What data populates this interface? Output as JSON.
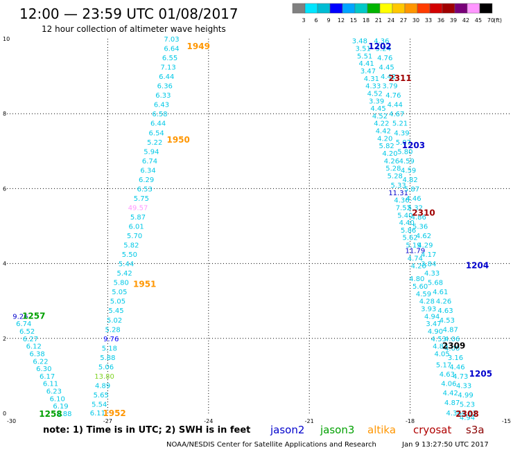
{
  "header": {
    "title": "12:00 — 23:59 UTC 01/08/2017",
    "subtitle": "12 hour collection of altimeter wave heights"
  },
  "color_scale": {
    "labels": [
      "3",
      "6",
      "9",
      "12",
      "15",
      "18",
      "21",
      "24",
      "27",
      "30",
      "33",
      "36",
      "39",
      "42",
      "45",
      "70"
    ],
    "unit": "(ft)",
    "colors": [
      "#808080",
      "#00e5ff",
      "#00bcd4",
      "#0000ff",
      "#00a5ff",
      "#00c8c8",
      "#00b400",
      "#ffff00",
      "#ffc800",
      "#ff9600",
      "#ff3c00",
      "#d20000",
      "#a00000",
      "#780078",
      "#ff96ff",
      "#000000"
    ]
  },
  "footer": {
    "note": "note:  1) Time is in UTC;  2) SWH is in feet",
    "credit": "NOAA/NESDIS Center for Satellite Applications and Research",
    "timestamp": "Jan  9 13:27:50 UTC 2017"
  },
  "legend": [
    {
      "name": "jason2",
      "color": "#0000cc"
    },
    {
      "name": "jason3",
      "color": "#00a000"
    },
    {
      "name": "altika",
      "color": "#ff9600"
    },
    {
      "name": "cryosat",
      "color": "#b00000"
    },
    {
      "name": "s3a",
      "color": "#8b0000"
    }
  ],
  "chart_data": {
    "type": "scatter",
    "xlim": [
      -30,
      -15
    ],
    "ylim": [
      0,
      10
    ],
    "x_ticks": [
      "-30",
      "-27",
      "-24",
      "-21",
      "-18",
      "-15"
    ],
    "y_ticks": [
      "0",
      "2",
      "4",
      "6",
      "8",
      "10"
    ],
    "grid": true,
    "pass_labels": [
      {
        "text": "1949",
        "x": -24.3,
        "y": 9.8,
        "color": "#ff9600"
      },
      {
        "text": "1950",
        "x": -24.9,
        "y": 7.3,
        "color": "#ff9600"
      },
      {
        "text": "1951",
        "x": -25.9,
        "y": 3.45,
        "color": "#ff9600"
      },
      {
        "text": "1952",
        "x": -26.8,
        "y": 0.0,
        "color": "#ff9600"
      },
      {
        "text": "1257",
        "x": -29.2,
        "y": 2.6,
        "color": "#00a000"
      },
      {
        "text": "1258",
        "x": -28.7,
        "y": -0.02,
        "color": "#00a000"
      },
      {
        "text": "1202",
        "x": -18.9,
        "y": 9.8,
        "color": "#0000cc"
      },
      {
        "text": "1203",
        "x": -17.9,
        "y": 7.15,
        "color": "#0000cc"
      },
      {
        "text": "1204",
        "x": -16.0,
        "y": 3.95,
        "color": "#0000cc"
      },
      {
        "text": "1205",
        "x": -15.9,
        "y": 1.05,
        "color": "#0000cc"
      },
      {
        "text": "2311",
        "x": -18.3,
        "y": 8.95,
        "color": "#a00000"
      },
      {
        "text": "2310",
        "x": -17.6,
        "y": 5.35,
        "color": "#a00000"
      },
      {
        "text": "2309",
        "x": -16.7,
        "y": 1.8,
        "color": "#000000"
      },
      {
        "text": "2308",
        "x": -16.3,
        "y": -0.02,
        "color": "#a00000"
      }
    ],
    "series": [
      {
        "name": "altika",
        "color": "#00c8e6",
        "points": [
          {
            "x": -25.1,
            "y": 10.0,
            "v": "7.03"
          },
          {
            "x": -25.1,
            "y": 9.75,
            "v": "6.64"
          },
          {
            "x": -25.15,
            "y": 9.5,
            "v": "6.55"
          },
          {
            "x": -25.2,
            "y": 9.25,
            "v": "7.13"
          },
          {
            "x": -25.25,
            "y": 9.0,
            "v": "6.44"
          },
          {
            "x": -25.3,
            "y": 8.75,
            "v": "6.36"
          },
          {
            "x": -25.35,
            "y": 8.5,
            "v": "6.33"
          },
          {
            "x": -25.4,
            "y": 8.25,
            "v": "6.43"
          },
          {
            "x": -25.45,
            "y": 8.0,
            "v": "6.58"
          },
          {
            "x": -25.5,
            "y": 7.75,
            "v": "6.44"
          },
          {
            "x": -25.55,
            "y": 7.5,
            "v": "6.54"
          },
          {
            "x": -25.6,
            "y": 7.25,
            "v": "5.22"
          },
          {
            "x": -25.7,
            "y": 7.0,
            "v": "5.94"
          },
          {
            "x": -25.75,
            "y": 6.75,
            "v": "6.74"
          },
          {
            "x": -25.8,
            "y": 6.5,
            "v": "6.34"
          },
          {
            "x": -25.85,
            "y": 6.25,
            "v": "6.29"
          },
          {
            "x": -25.9,
            "y": 6.0,
            "v": "6.53"
          },
          {
            "x": -26.0,
            "y": 5.75,
            "v": "5.75"
          },
          {
            "x": -26.1,
            "y": 5.5,
            "v": "49.57",
            "color": "#ff96ff"
          },
          {
            "x": -26.1,
            "y": 5.25,
            "v": "5.87"
          },
          {
            "x": -26.15,
            "y": 5.0,
            "v": "6.01"
          },
          {
            "x": -26.2,
            "y": 4.75,
            "v": "5.70"
          },
          {
            "x": -26.3,
            "y": 4.5,
            "v": "5.82"
          },
          {
            "x": -26.35,
            "y": 4.25,
            "v": "5.50"
          },
          {
            "x": -26.45,
            "y": 4.0,
            "v": "5.44"
          },
          {
            "x": -26.5,
            "y": 3.75,
            "v": "5.42"
          },
          {
            "x": -26.6,
            "y": 3.5,
            "v": "5.80"
          },
          {
            "x": -26.65,
            "y": 3.25,
            "v": "5.05"
          },
          {
            "x": -26.7,
            "y": 3.0,
            "v": "5.05"
          },
          {
            "x": -26.75,
            "y": 2.75,
            "v": "5.45"
          },
          {
            "x": -26.8,
            "y": 2.5,
            "v": "5.02"
          },
          {
            "x": -26.85,
            "y": 2.25,
            "v": "5.28"
          },
          {
            "x": -26.9,
            "y": 2.0,
            "v": "9.76",
            "color": "#0000ff"
          },
          {
            "x": -26.95,
            "y": 1.75,
            "v": "5.18"
          },
          {
            "x": -27.0,
            "y": 1.5,
            "v": "5.88"
          },
          {
            "x": -27.05,
            "y": 1.25,
            "v": "5.06"
          },
          {
            "x": -27.1,
            "y": 1.0,
            "v": "13.80",
            "color": "#7ed321"
          },
          {
            "x": -27.15,
            "y": 0.75,
            "v": "4.89"
          },
          {
            "x": -27.2,
            "y": 0.5,
            "v": "5.65"
          },
          {
            "x": -27.25,
            "y": 0.25,
            "v": "5.54"
          },
          {
            "x": -27.3,
            "y": 0.02,
            "v": "6.11"
          }
        ]
      },
      {
        "name": "jason3",
        "color": "#00c8e6",
        "points": [
          {
            "x": -29.6,
            "y": 2.6,
            "v": "9.26",
            "color": "#0000cc"
          },
          {
            "x": -29.5,
            "y": 2.4,
            "v": "6.74"
          },
          {
            "x": -29.4,
            "y": 2.2,
            "v": "6.52"
          },
          {
            "x": -29.3,
            "y": 2.0,
            "v": "6.27"
          },
          {
            "x": -29.2,
            "y": 1.8,
            "v": "6.12"
          },
          {
            "x": -29.1,
            "y": 1.6,
            "v": "6.38"
          },
          {
            "x": -29.0,
            "y": 1.4,
            "v": "6.22"
          },
          {
            "x": -28.9,
            "y": 1.2,
            "v": "6.30"
          },
          {
            "x": -28.8,
            "y": 1.0,
            "v": "6.17"
          },
          {
            "x": -28.7,
            "y": 0.8,
            "v": "6.11"
          },
          {
            "x": -28.6,
            "y": 0.6,
            "v": "6.23"
          },
          {
            "x": -28.5,
            "y": 0.4,
            "v": "6.10"
          },
          {
            "x": -28.4,
            "y": 0.2,
            "v": "6.19"
          },
          {
            "x": -28.3,
            "y": 0.0,
            "v": "5.88"
          }
        ]
      },
      {
        "name": "jason2",
        "color": "#00c8e6",
        "points": [
          {
            "x": -19.5,
            "y": 9.95,
            "v": "3.48"
          },
          {
            "x": -19.4,
            "y": 9.75,
            "v": "3.51"
          },
          {
            "x": -19.35,
            "y": 9.55,
            "v": "5.51"
          },
          {
            "x": -19.3,
            "y": 9.35,
            "v": "4.41"
          },
          {
            "x": -19.25,
            "y": 9.15,
            "v": "3.47"
          },
          {
            "x": -19.15,
            "y": 8.95,
            "v": "4.31"
          },
          {
            "x": -19.1,
            "y": 8.75,
            "v": "4.33"
          },
          {
            "x": -19.05,
            "y": 8.55,
            "v": "4.52"
          },
          {
            "x": -19.0,
            "y": 8.35,
            "v": "3.39"
          },
          {
            "x": -18.95,
            "y": 8.15,
            "v": "4.45"
          },
          {
            "x": -18.9,
            "y": 7.95,
            "v": "4.52"
          },
          {
            "x": -18.85,
            "y": 7.75,
            "v": "4.22"
          },
          {
            "x": -18.8,
            "y": 7.55,
            "v": "4.42"
          },
          {
            "x": -18.75,
            "y": 7.35,
            "v": "4.20"
          },
          {
            "x": -18.7,
            "y": 7.15,
            "v": "5.82"
          },
          {
            "x": -18.6,
            "y": 6.95,
            "v": "4.20"
          },
          {
            "x": -18.55,
            "y": 6.75,
            "v": "4.26"
          },
          {
            "x": -18.5,
            "y": 6.55,
            "v": "5.28"
          },
          {
            "x": -18.45,
            "y": 6.35,
            "v": "5.28"
          },
          {
            "x": -18.35,
            "y": 6.1,
            "v": "5.33"
          },
          {
            "x": -18.35,
            "y": 5.9,
            "v": "11.31",
            "color": "#0000cc"
          },
          {
            "x": -18.25,
            "y": 5.7,
            "v": "4.36"
          },
          {
            "x": -18.2,
            "y": 5.5,
            "v": "7.52"
          },
          {
            "x": -18.15,
            "y": 5.3,
            "v": "5.40"
          },
          {
            "x": -18.1,
            "y": 5.1,
            "v": "4.40"
          },
          {
            "x": -18.05,
            "y": 4.9,
            "v": "5.86"
          },
          {
            "x": -18.0,
            "y": 4.7,
            "v": "5.62"
          },
          {
            "x": -17.9,
            "y": 4.5,
            "v": "5.19"
          },
          {
            "x": -17.85,
            "y": 4.35,
            "v": "11.79",
            "color": "#0000cc"
          },
          {
            "x": -17.85,
            "y": 4.15,
            "v": "4.74"
          },
          {
            "x": -17.75,
            "y": 3.95,
            "v": "4.20"
          }
        ]
      },
      {
        "name": "cryosat",
        "color": "#00c8e6",
        "points": [
          {
            "x": -18.85,
            "y": 9.95,
            "v": "4.36"
          },
          {
            "x": -18.8,
            "y": 9.75,
            "v": "5.24"
          },
          {
            "x": -18.75,
            "y": 9.5,
            "v": "4.76"
          },
          {
            "x": -18.7,
            "y": 9.25,
            "v": "4.45"
          },
          {
            "x": -18.65,
            "y": 9.0,
            "v": "4.42"
          },
          {
            "x": -18.6,
            "y": 8.75,
            "v": "3.79"
          },
          {
            "x": -18.5,
            "y": 8.5,
            "v": "4.76"
          },
          {
            "x": -18.45,
            "y": 8.25,
            "v": "4.44"
          },
          {
            "x": -18.4,
            "y": 8.0,
            "v": "4.67"
          },
          {
            "x": -18.3,
            "y": 7.75,
            "v": "5.21"
          },
          {
            "x": -18.25,
            "y": 7.5,
            "v": "4.39"
          },
          {
            "x": -18.2,
            "y": 7.25,
            "v": "5.07"
          },
          {
            "x": -18.15,
            "y": 7.0,
            "v": "5.80"
          },
          {
            "x": -18.1,
            "y": 6.75,
            "v": "4.59"
          },
          {
            "x": -18.05,
            "y": 6.5,
            "v": "4.59"
          },
          {
            "x": -18.0,
            "y": 6.25,
            "v": "4.82"
          },
          {
            "x": -17.95,
            "y": 6.0,
            "v": "5.87"
          },
          {
            "x": -17.9,
            "y": 5.75,
            "v": "4.46"
          },
          {
            "x": -17.85,
            "y": 5.5,
            "v": "5.32"
          },
          {
            "x": -17.75,
            "y": 5.25,
            "v": "4.86"
          },
          {
            "x": -17.7,
            "y": 5.0,
            "v": "5.36"
          },
          {
            "x": -17.6,
            "y": 4.75,
            "v": "4.62"
          },
          {
            "x": -17.55,
            "y": 4.5,
            "v": "4.29"
          },
          {
            "x": -17.45,
            "y": 4.25,
            "v": "4.17"
          },
          {
            "x": -17.45,
            "y": 4.0,
            "v": "3.84"
          },
          {
            "x": -17.35,
            "y": 3.75,
            "v": "4.33"
          },
          {
            "x": -17.25,
            "y": 3.5,
            "v": "5.68"
          },
          {
            "x": -17.1,
            "y": 3.25,
            "v": "4.61"
          },
          {
            "x": -17.0,
            "y": 3.0,
            "v": "4.26"
          },
          {
            "x": -16.95,
            "y": 2.75,
            "v": "4.63"
          },
          {
            "x": -16.9,
            "y": 2.5,
            "v": "4.53"
          },
          {
            "x": -16.8,
            "y": 2.25,
            "v": "4.87"
          },
          {
            "x": -16.75,
            "y": 2.0,
            "v": "4.06"
          },
          {
            "x": -16.75,
            "y": 1.75,
            "v": "4.00"
          },
          {
            "x": -16.65,
            "y": 1.5,
            "v": "3.16"
          },
          {
            "x": -16.6,
            "y": 1.25,
            "v": "4.46"
          },
          {
            "x": -16.5,
            "y": 1.0,
            "v": "4.73"
          },
          {
            "x": -16.4,
            "y": 0.75,
            "v": "4.33"
          },
          {
            "x": -16.35,
            "y": 0.5,
            "v": "4.99"
          },
          {
            "x": -16.3,
            "y": 0.25,
            "v": "5.23"
          },
          {
            "x": -16.25,
            "y": 0.02,
            "v": "4.83"
          }
        ]
      },
      {
        "name": "s3a",
        "color": "#00c8e6",
        "points": [
          {
            "x": -17.8,
            "y": 3.6,
            "v": "4.80"
          },
          {
            "x": -17.7,
            "y": 3.4,
            "v": "5.60"
          },
          {
            "x": -17.6,
            "y": 3.2,
            "v": "4.59"
          },
          {
            "x": -17.5,
            "y": 3.0,
            "v": "4.28"
          },
          {
            "x": -17.45,
            "y": 2.8,
            "v": "3.93"
          },
          {
            "x": -17.35,
            "y": 2.6,
            "v": "4.94"
          },
          {
            "x": -17.3,
            "y": 2.4,
            "v": "3.47"
          },
          {
            "x": -17.25,
            "y": 2.2,
            "v": "4.90"
          },
          {
            "x": -17.15,
            "y": 2.0,
            "v": "4.53"
          },
          {
            "x": -17.1,
            "y": 1.8,
            "v": "4.83"
          },
          {
            "x": -17.05,
            "y": 1.6,
            "v": "4.05"
          },
          {
            "x": -17.0,
            "y": 1.3,
            "v": "5.17"
          },
          {
            "x": -16.9,
            "y": 1.05,
            "v": "4.63"
          },
          {
            "x": -16.85,
            "y": 0.8,
            "v": "4.06"
          },
          {
            "x": -16.8,
            "y": 0.55,
            "v": "4.42"
          },
          {
            "x": -16.75,
            "y": 0.3,
            "v": "4.87"
          },
          {
            "x": -16.7,
            "y": 0.02,
            "v": "4.36"
          },
          {
            "x": -16.3,
            "y": -0.1,
            "v": "4.94"
          }
        ]
      }
    ]
  }
}
